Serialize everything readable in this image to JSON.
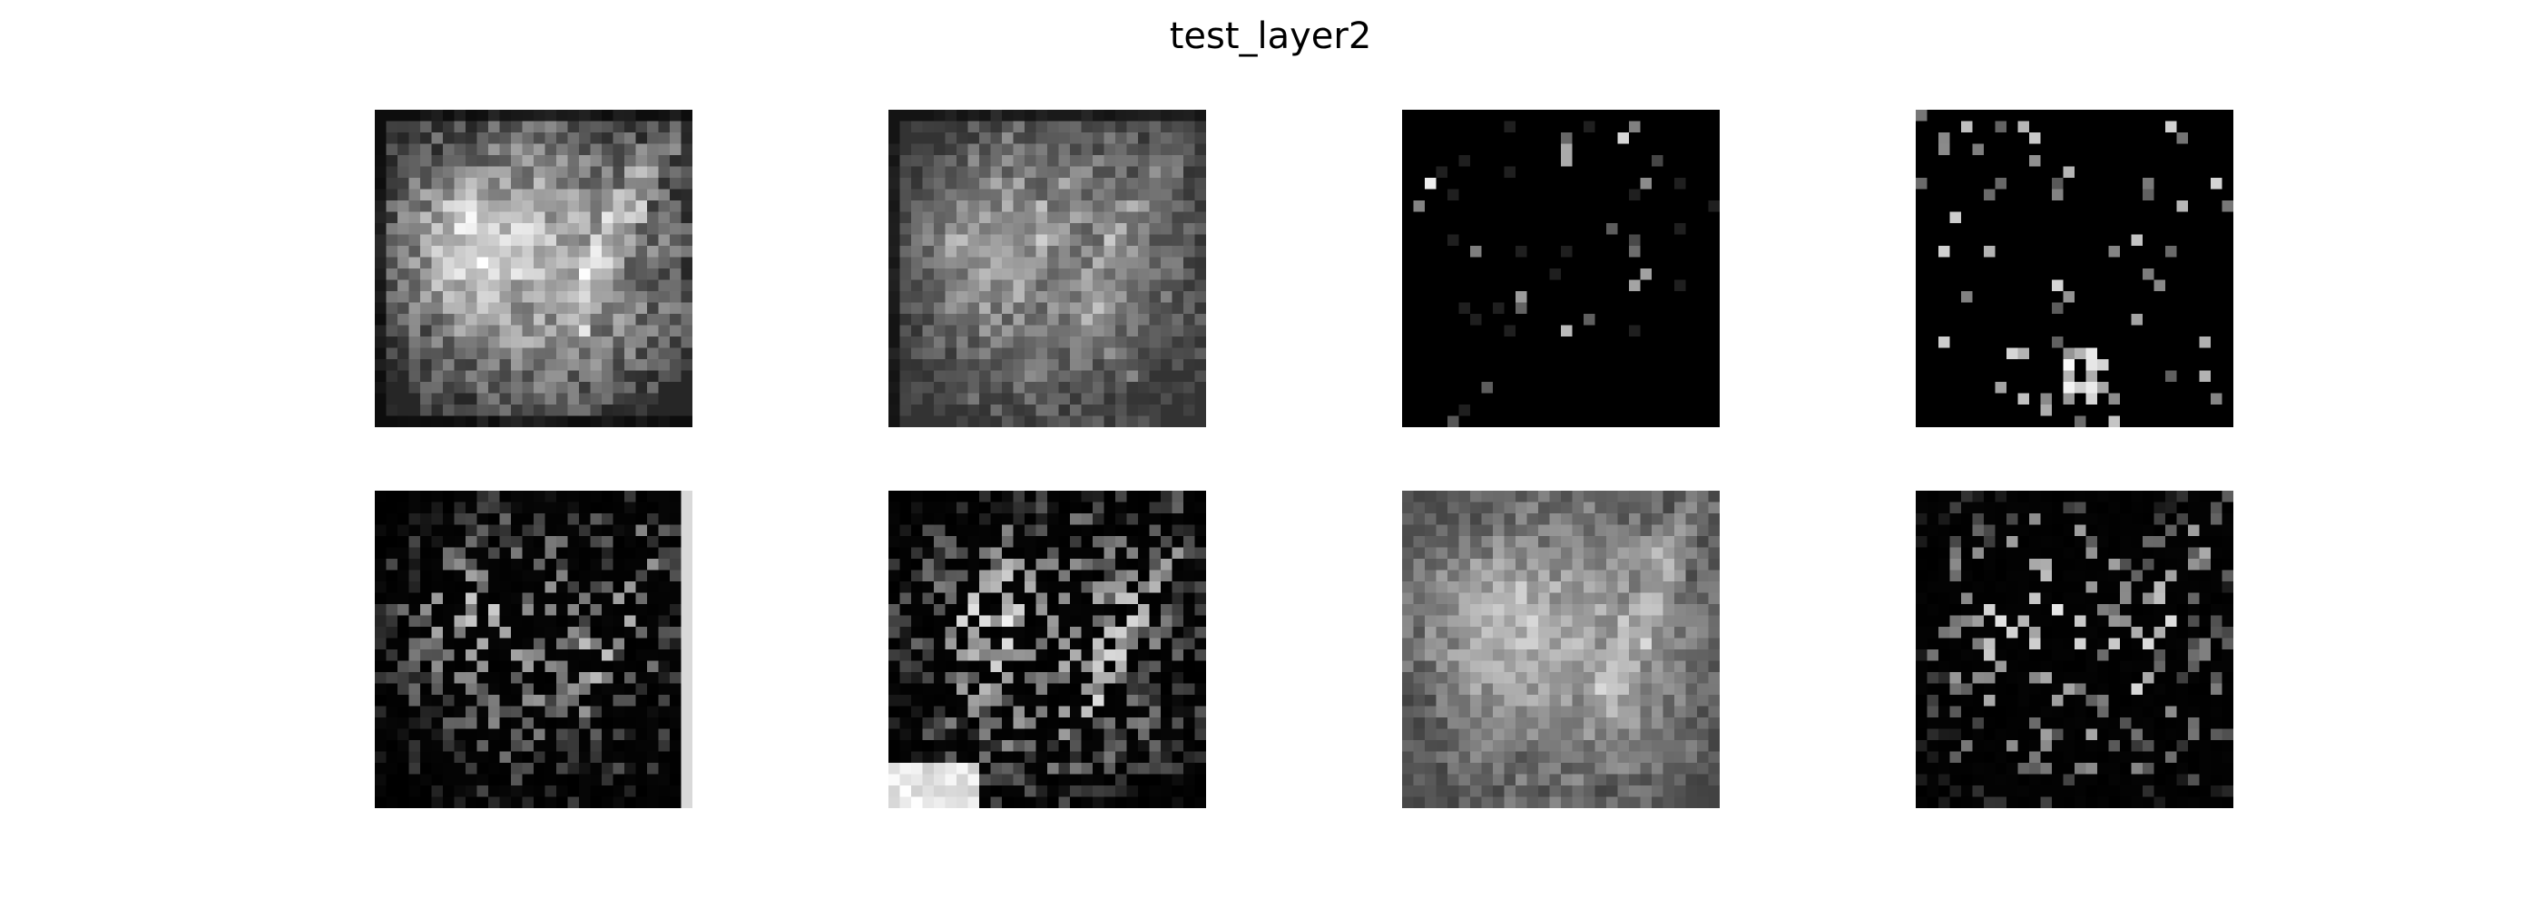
{
  "figure": {
    "title": "test_layer2"
  },
  "panels": [
    {
      "kind": "bright-texture",
      "seed": 11
    },
    {
      "kind": "mid-texture",
      "seed": 23
    },
    {
      "kind": "sparse-dots",
      "seed": 37
    },
    {
      "kind": "sparse-cluster",
      "seed": 41
    },
    {
      "kind": "edge-texture",
      "seed": 53
    },
    {
      "kind": "dense-edge-texture",
      "seed": 67
    },
    {
      "kind": "smooth-bright",
      "seed": 71
    },
    {
      "kind": "sparse-edge-texture",
      "seed": 89
    }
  ],
  "colormap": "gray"
}
